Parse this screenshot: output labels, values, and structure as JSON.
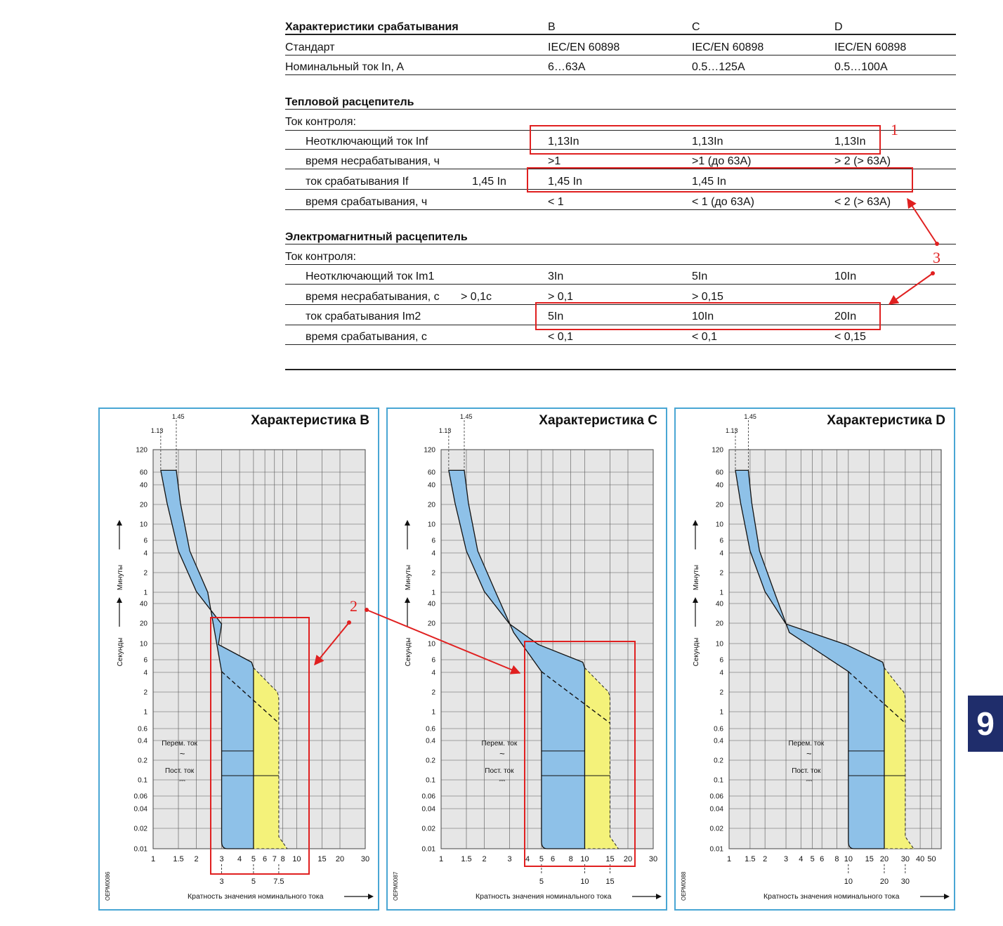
{
  "table": {
    "header": {
      "label": "Характеристики срабатывания",
      "b": "B",
      "c": "C",
      "d": "D"
    },
    "rows_top": [
      {
        "label": "Стандарт",
        "b": "IEC/EN 60898",
        "c": "IEC/EN 60898",
        "d": "IEC/EN 60898"
      },
      {
        "label": "Номинальный ток In, A",
        "b": "6…63A",
        "c": "0.5…125A",
        "d": "0.5…100A"
      }
    ],
    "thermal": {
      "title": "Тепловой расцепитель",
      "control": "Ток контроля:",
      "rows": [
        {
          "label": "Неотключающий ток  Inf",
          "extra": "",
          "b": "1,13In",
          "c": "1,13In",
          "d": "1,13In"
        },
        {
          "label": "время несрабатывания, ч",
          "extra": "",
          "b": ">1",
          "c": ">1 (до 63A)",
          "d": "> 2 (> 63A)"
        },
        {
          "label": "ток срабатывания If",
          "extra": "1,45 In",
          "b": "1,45 In",
          "c": "1,45 In",
          "d": ""
        },
        {
          "label": "время срабатывания, ч",
          "extra": "",
          "b": "< 1",
          "c": "< 1 (до 63A)",
          "d": "< 2 (> 63A)"
        }
      ]
    },
    "magnetic": {
      "title": "Электромагнитный расцепитель",
      "control": "Ток контроля:",
      "rows": [
        {
          "label": "Неотключающий ток Im1",
          "extra": "",
          "b": "3In",
          "c": "5In",
          "d": "10In"
        },
        {
          "label": "время несрабатывания, с",
          "extra": "> 0,1c",
          "b": "> 0,1",
          "c": "> 0,15",
          "d": ""
        },
        {
          "label": "ток срабатывания Im2",
          "extra": "",
          "b": "5In",
          "c": "10In",
          "d": "20In"
        },
        {
          "label": "время срабатывания, с",
          "extra": "",
          "b": "< 0,1",
          "c": "< 0,1",
          "d": "< 0,15"
        }
      ]
    }
  },
  "annotations": {
    "n1": "1",
    "n2": "2",
    "n3": "3",
    "color": "#e02020"
  },
  "side_tab": "9",
  "chart_common": {
    "ylabel_minutes": "Минуты",
    "ylabel_seconds": "Секунды",
    "xlabel": "Кратность значения номинального тока",
    "y_ticks_minutes": [
      "120",
      "60",
      "40",
      "20",
      "10",
      "6",
      "4",
      "2",
      "1"
    ],
    "y_ticks_seconds": [
      "40",
      "20",
      "10",
      "6",
      "4",
      "2",
      "1",
      "0.6",
      "0.4",
      "0.2",
      "0.1",
      "0.06",
      "0.04",
      "0.02",
      "0.01"
    ],
    "marker_113": "1.13",
    "marker_145": "1.45",
    "ac_label": "Перем. ток",
    "dc_label": "Пост. ток",
    "ac_symbol": "~",
    "dc_symbol": "⎓",
    "colors": {
      "band": "#8ec1e8",
      "dc_band": "#f4f27a",
      "bg": "#e6e6e6",
      "frame": "#49a6d4"
    }
  },
  "chart_data": [
    {
      "type": "area",
      "title": "Характеристика B",
      "code": "OEPM0086",
      "x_ticks": [
        "1",
        "1.5",
        "2",
        "3",
        "4",
        "5",
        "6",
        "7",
        "8",
        "10",
        "15",
        "20",
        "30"
      ],
      "marked_x": [
        "3",
        "5",
        "7.5"
      ],
      "magnetic_trip_range": [
        3,
        5
      ],
      "dc_max": 7.5
    },
    {
      "type": "area",
      "title": "Характеристика C",
      "code": "OEPM0087",
      "x_ticks": [
        "1",
        "1.5",
        "2",
        "3",
        "4",
        "5",
        "6",
        "8",
        "10",
        "15",
        "20",
        "30"
      ],
      "marked_x": [
        "5",
        "10",
        "15"
      ],
      "magnetic_trip_range": [
        5,
        10
      ],
      "dc_max": 15
    },
    {
      "type": "area",
      "title": "Характеристика D",
      "code": "OEPM0088",
      "x_ticks": [
        "1",
        "1.5",
        "2",
        "3",
        "4",
        "5",
        "6",
        "8",
        "10",
        "15",
        "20",
        "30",
        "40",
        "50"
      ],
      "marked_x": [
        "10",
        "20",
        "30"
      ],
      "magnetic_trip_range": [
        10,
        20
      ],
      "dc_max": 30
    }
  ]
}
